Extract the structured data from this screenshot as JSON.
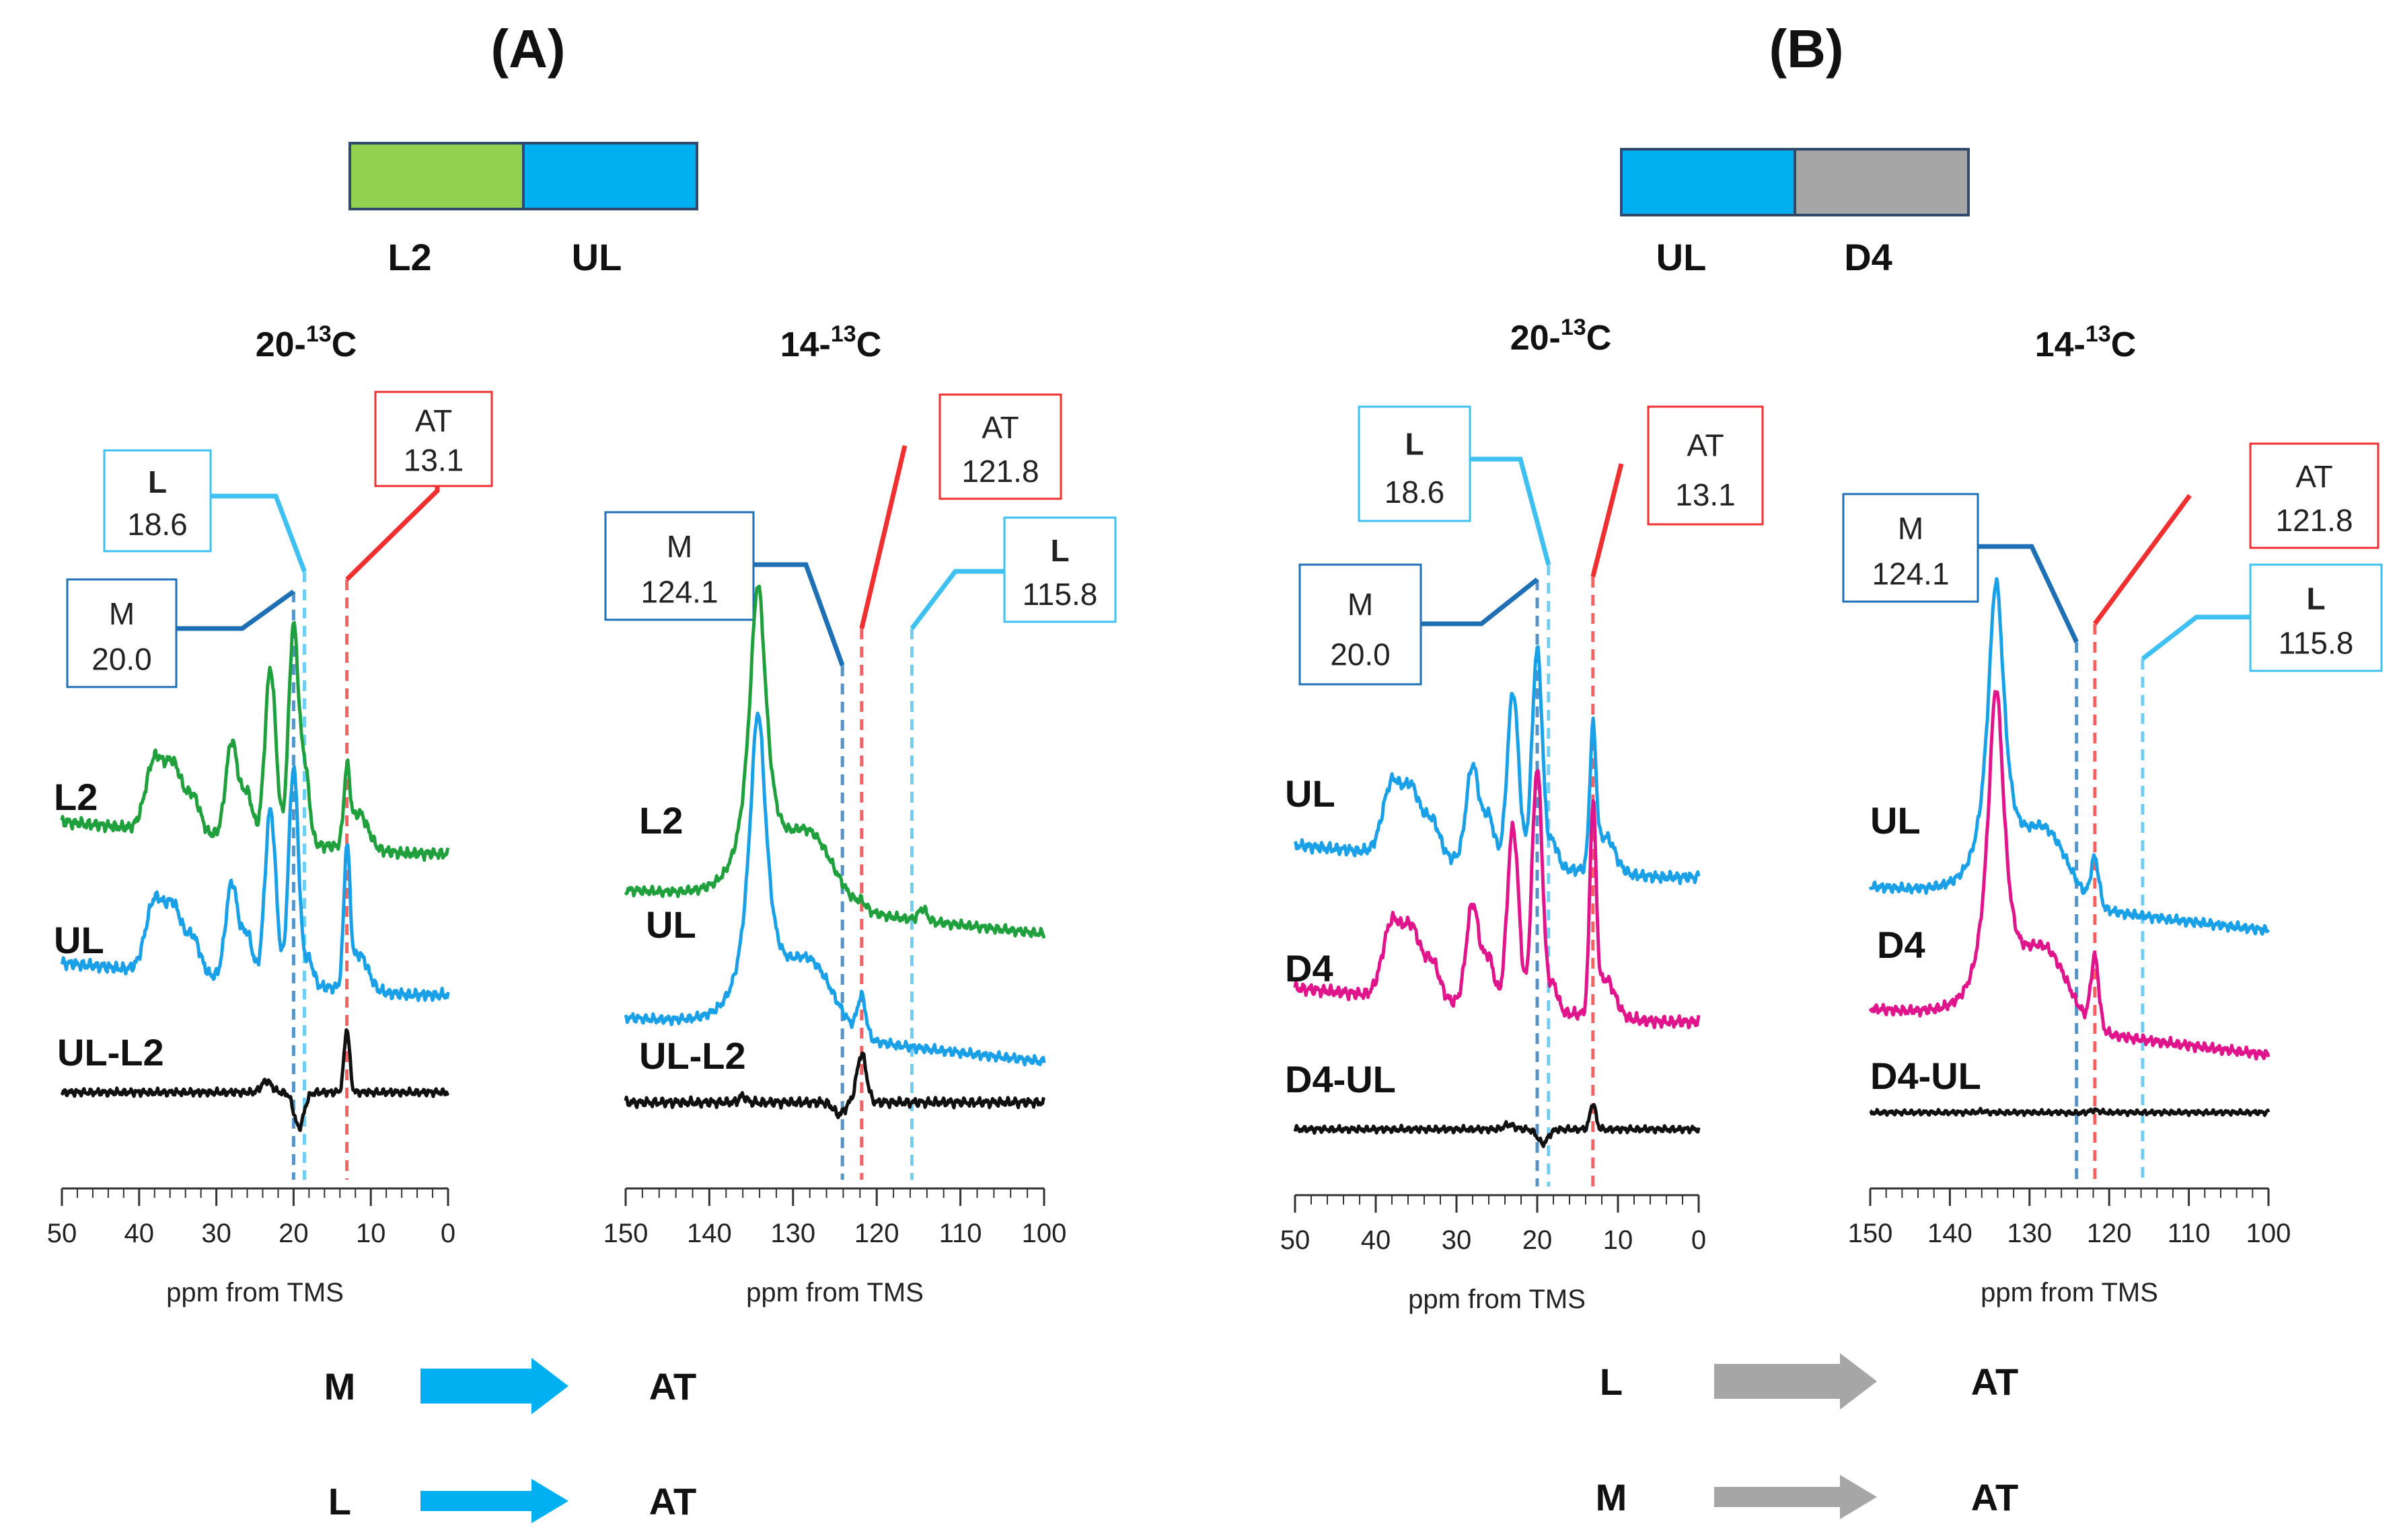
{
  "panels": [
    {
      "letter": "(A)",
      "bar": [
        {
          "label": "L2",
          "color": "#92d050"
        },
        {
          "label": "UL",
          "color": "#00b0f0"
        }
      ],
      "flows": [
        {
          "from": "M",
          "to": "AT",
          "color": "#00b0f0"
        },
        {
          "from": "L",
          "to": "AT",
          "color": "#00b0f0"
        }
      ]
    },
    {
      "letter": "(B)",
      "bar": [
        {
          "label": "UL",
          "color": "#00b0f0"
        },
        {
          "label": "D4",
          "color": "#a6a6a6"
        }
      ],
      "flows": [
        {
          "from": "L",
          "to": "AT",
          "color": "#a6a6a6"
        },
        {
          "from": "M",
          "to": "AT",
          "color": "#a6a6a6"
        }
      ]
    }
  ],
  "chart_data": [
    {
      "type": "line",
      "title": "20-13C",
      "title_base": "20-",
      "title_sup": "13",
      "title_tail": "C",
      "xlabel": "ppm from TMS",
      "xlim": [
        50,
        0
      ],
      "x_ticks": [
        50,
        40,
        30,
        20,
        10,
        0
      ],
      "x_tick_labels": [
        "50",
        "40",
        "30",
        "20",
        "10",
        "0"
      ],
      "series": [
        {
          "name": "L2",
          "color": "#1fa03c"
        },
        {
          "name": "UL",
          "color": "#1aa0e6"
        },
        {
          "name": "UL-L2",
          "color": "#111111"
        }
      ],
      "markers": [
        {
          "name": "M",
          "value": "20.0",
          "ppm": 20.0,
          "color": "#1f6fb4"
        },
        {
          "name": "L",
          "value": "18.6",
          "ppm": 18.6,
          "color": "#3ec0f0"
        },
        {
          "name": "AT",
          "value": "13.1",
          "ppm": 13.1,
          "color": "#f03030"
        }
      ]
    },
    {
      "type": "line",
      "title": "14-13C",
      "title_base": "14-",
      "title_sup": "13",
      "title_tail": "C",
      "xlabel": "ppm from TMS",
      "xlim": [
        150,
        100
      ],
      "x_ticks": [
        150,
        140,
        130,
        120,
        110,
        100
      ],
      "x_tick_labels": [
        "150",
        "140",
        "130",
        "120",
        "110",
        "100"
      ],
      "series": [
        {
          "name": "L2",
          "color": "#1fa03c"
        },
        {
          "name": "UL",
          "color": "#1aa0e6"
        },
        {
          "name": "UL-L2",
          "color": "#111111"
        }
      ],
      "markers": [
        {
          "name": "M",
          "value": "124.1",
          "ppm": 124.1,
          "color": "#1f6fb4"
        },
        {
          "name": "AT",
          "value": "121.8",
          "ppm": 121.8,
          "color": "#f03030"
        },
        {
          "name": "L",
          "value": "115.8",
          "ppm": 115.8,
          "color": "#3ec0f0"
        }
      ]
    },
    {
      "type": "line",
      "title": "20-13C",
      "title_base": "20-",
      "title_sup": "13",
      "title_tail": "C",
      "xlabel": "ppm from TMS",
      "xlim": [
        50,
        0
      ],
      "x_ticks": [
        50,
        40,
        30,
        20,
        10,
        0
      ],
      "x_tick_labels": [
        "50",
        "40",
        "30",
        "20",
        "10",
        "0"
      ],
      "series": [
        {
          "name": "UL",
          "color": "#1aa0e6"
        },
        {
          "name": "D4",
          "color": "#e0158c"
        },
        {
          "name": "D4-UL",
          "color": "#111111"
        }
      ],
      "markers": [
        {
          "name": "L",
          "value": "18.6",
          "ppm": 18.6,
          "color": "#3ec0f0"
        },
        {
          "name": "M",
          "value": "20.0",
          "ppm": 20.0,
          "color": "#1f6fb4"
        },
        {
          "name": "AT",
          "value": "13.1",
          "ppm": 13.1,
          "color": "#f03030"
        }
      ]
    },
    {
      "type": "line",
      "title": "14-13C",
      "title_base": "14-",
      "title_sup": "13",
      "title_tail": "C",
      "xlabel": "ppm from TMS",
      "xlim": [
        150,
        100
      ],
      "x_ticks": [
        150,
        140,
        130,
        120,
        110,
        100
      ],
      "x_tick_labels": [
        "150",
        "140",
        "130",
        "120",
        "110",
        "100"
      ],
      "series": [
        {
          "name": "UL",
          "color": "#1aa0e6"
        },
        {
          "name": "D4",
          "color": "#e0158c"
        },
        {
          "name": "D4-UL",
          "color": "#111111"
        }
      ],
      "markers": [
        {
          "name": "M",
          "value": "124.1",
          "ppm": 124.1,
          "color": "#1f6fb4"
        },
        {
          "name": "AT",
          "value": "121.8",
          "ppm": 121.8,
          "color": "#f03030"
        },
        {
          "name": "L",
          "value": "115.8",
          "ppm": 115.8,
          "color": "#3ec0f0"
        }
      ]
    }
  ]
}
